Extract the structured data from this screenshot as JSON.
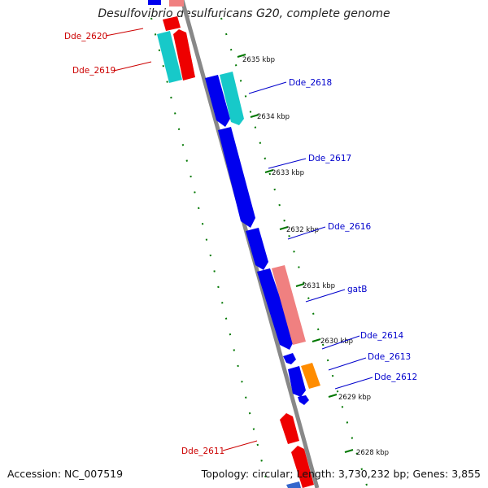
{
  "title": "Desulfovibrio desulfuricans G20, complete genome",
  "footer": {
    "accession": "Accession: NC_007519",
    "summary": "Topology: circular; Length: 3,730,232 bp; Genes: 3,855"
  },
  "ticks": [
    "2635 kbp",
    "2634 kbp",
    "2633 kbp",
    "2632 kbp",
    "2631 kbp",
    "2630 kbp",
    "2629 kbp",
    "2628 kbp"
  ],
  "gene_labels": {
    "dde_2620": "Dde_2620",
    "dde_2619": "Dde_2619",
    "dde_2618": "Dde_2618",
    "dde_2617": "Dde_2617",
    "dde_2616": "Dde_2616",
    "gatb": "gatB",
    "dde_2614": "Dde_2614",
    "dde_2613": "Dde_2613",
    "dde_2612": "Dde_2612",
    "dde_2611": "Dde_2611"
  },
  "colors": {
    "forward_gene": "#0000ee",
    "reverse_gene": "#ee0000",
    "cyan_gene": "#17c9c9",
    "pink_gene": "#f08080",
    "orange_gene": "#ff8c00",
    "backbone": "#888888",
    "tick": "#007700",
    "forward_label": "#0000cc",
    "reverse_label": "#cc0000"
  }
}
